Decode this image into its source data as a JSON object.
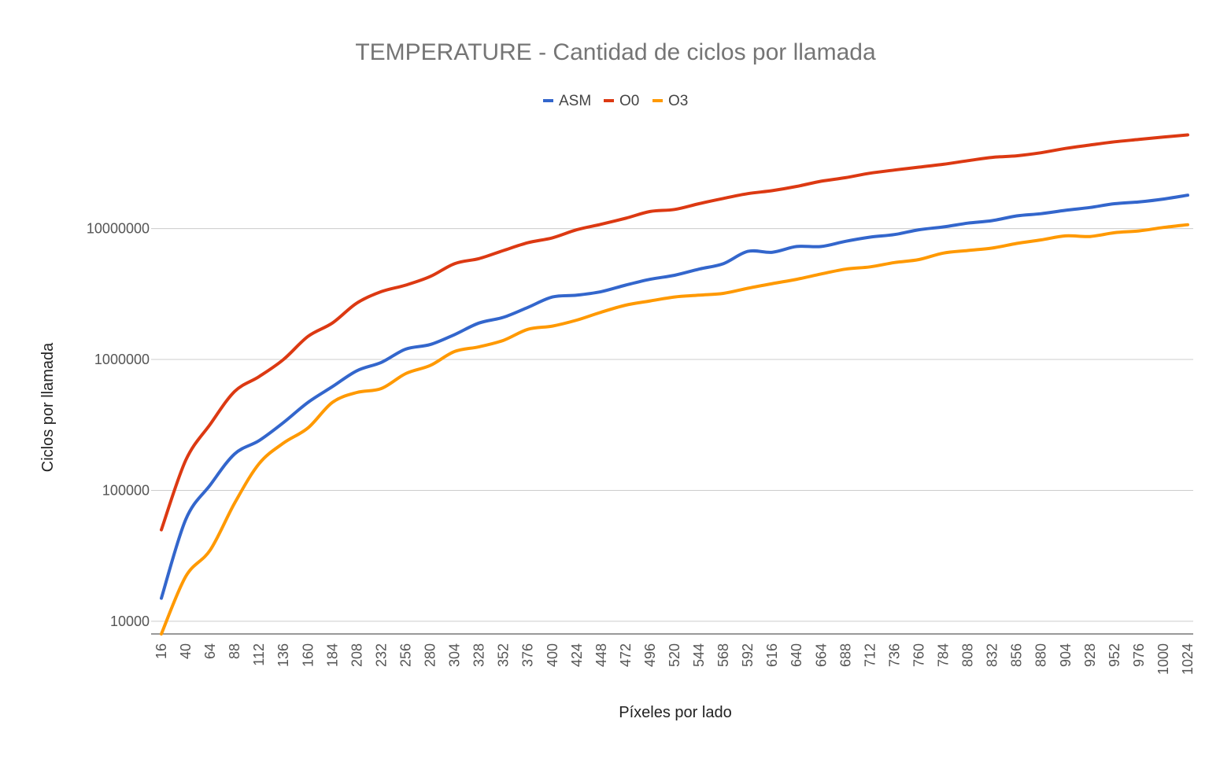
{
  "chart_data": {
    "type": "line",
    "title": "TEMPERATURE - Cantidad de ciclos por llamada",
    "xlabel": "Píxeles por lado",
    "ylabel": "Ciclos por llamada",
    "yscale": "log",
    "ylim": [
      8000,
      70000000
    ],
    "yticks": [
      10000,
      100000,
      1000000,
      10000000
    ],
    "ytick_labels": [
      "10000",
      "100000",
      "1000000",
      "10000000"
    ],
    "grid": "horizontal",
    "legend_position": "top",
    "x_ticks": [
      16,
      40,
      64,
      88,
      112,
      136,
      160,
      184,
      208,
      232,
      256,
      280,
      304,
      328,
      352,
      376,
      400,
      424,
      448,
      472,
      496,
      520,
      544,
      568,
      592,
      616,
      640,
      664,
      688,
      712,
      736,
      760,
      784,
      808,
      832,
      856,
      880,
      904,
      928,
      952,
      976,
      1000,
      1024
    ],
    "x": [
      16,
      40,
      64,
      88,
      112,
      136,
      160,
      184,
      208,
      232,
      256,
      280,
      304,
      328,
      352,
      376,
      400,
      424,
      448,
      472,
      496,
      520,
      544,
      568,
      592,
      616,
      640,
      664,
      688,
      712,
      736,
      760,
      784,
      808,
      832,
      856,
      880,
      904,
      928,
      952,
      976,
      1000,
      1024
    ],
    "series": [
      {
        "name": "ASM",
        "color": "#3366cc",
        "values": [
          15000,
          60000,
          110000,
          190000,
          240000,
          330000,
          470000,
          620000,
          820000,
          950000,
          1200000,
          1300000,
          1550000,
          1900000,
          2100000,
          2500000,
          3000000,
          3100000,
          3300000,
          3700000,
          4100000,
          4400000,
          4900000,
          5400000,
          6700000,
          6600000,
          7300000,
          7300000,
          8000000,
          8600000,
          9000000,
          9800000,
          10300000,
          11000000,
          11500000,
          12500000,
          13000000,
          13800000,
          14500000,
          15500000,
          16000000,
          16800000,
          18000000
        ]
      },
      {
        "name": "O0",
        "color": "#dc3912",
        "values": [
          50000,
          170000,
          320000,
          570000,
          740000,
          1000000,
          1500000,
          1900000,
          2700000,
          3300000,
          3700000,
          4300000,
          5400000,
          5900000,
          6800000,
          7800000,
          8500000,
          9800000,
          10800000,
          12000000,
          13500000,
          14000000,
          15500000,
          17000000,
          18500000,
          19500000,
          21000000,
          23000000,
          24500000,
          26500000,
          28000000,
          29500000,
          31000000,
          33000000,
          35000000,
          36000000,
          38000000,
          41000000,
          43500000,
          46000000,
          48000000,
          50000000,
          52000000
        ]
      },
      {
        "name": "O3",
        "color": "#ff9900",
        "values": [
          8000,
          22000,
          35000,
          80000,
          160000,
          230000,
          300000,
          470000,
          560000,
          600000,
          780000,
          900000,
          1150000,
          1250000,
          1400000,
          1700000,
          1800000,
          2000000,
          2300000,
          2600000,
          2800000,
          3000000,
          3100000,
          3200000,
          3500000,
          3800000,
          4100000,
          4500000,
          4900000,
          5100000,
          5500000,
          5800000,
          6500000,
          6800000,
          7100000,
          7700000,
          8200000,
          8800000,
          8700000,
          9300000,
          9600000,
          10200000,
          10700000
        ]
      }
    ]
  }
}
